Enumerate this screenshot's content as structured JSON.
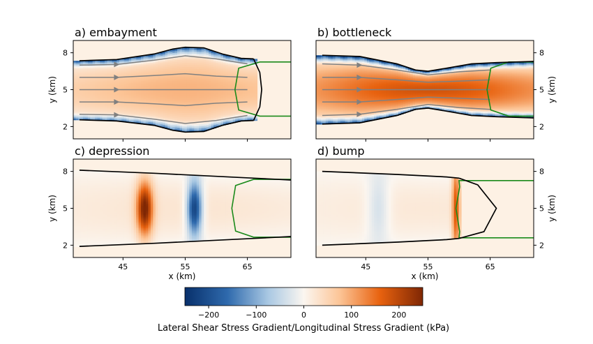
{
  "chart_data": [
    {
      "type": "heatmap",
      "title": "a) embayment",
      "xlabel": "",
      "ylabel": "y (km)",
      "xlim": [
        37,
        72
      ],
      "ylim": [
        1,
        9
      ],
      "xticks": [
        45,
        55,
        65
      ],
      "yticks": [
        2,
        5,
        8
      ],
      "ytick_side": "left",
      "show_xticklabels": false,
      "geometry": "embayment",
      "margin": {
        "upper": [
          [
            38,
            7.35
          ],
          [
            44,
            7.45
          ],
          [
            50,
            7.9
          ],
          [
            53,
            8.3
          ],
          [
            55,
            8.45
          ],
          [
            58,
            8.4
          ],
          [
            61,
            7.9
          ],
          [
            64,
            7.55
          ],
          [
            66,
            7.5
          ]
        ],
        "lower": [
          [
            38,
            2.55
          ],
          [
            44,
            2.45
          ],
          [
            50,
            2.1
          ],
          [
            53,
            1.7
          ],
          [
            55,
            1.55
          ],
          [
            58,
            1.6
          ],
          [
            61,
            2.1
          ],
          [
            64,
            2.45
          ],
          [
            66,
            2.5
          ]
        ]
      },
      "calving_front": [
        [
          66,
          7.5
        ],
        [
          67,
          6.4
        ],
        [
          67.3,
          5
        ],
        [
          67,
          3.6
        ],
        [
          66,
          2.5
        ]
      ],
      "streamlines": [
        [
          [
            38,
            7.0
          ],
          [
            44,
            7.05
          ],
          [
            50,
            7.4
          ],
          [
            55,
            7.75
          ],
          [
            60,
            7.5
          ],
          [
            63,
            7.25
          ],
          [
            65,
            7.1
          ]
        ],
        [
          [
            38,
            6.0
          ],
          [
            44,
            6.0
          ],
          [
            50,
            6.15
          ],
          [
            55,
            6.3
          ],
          [
            60,
            6.1
          ],
          [
            65,
            6.0
          ]
        ],
        [
          [
            38,
            5.0
          ],
          [
            44,
            5.0
          ],
          [
            50,
            5.0
          ],
          [
            55,
            5.0
          ],
          [
            60,
            5.0
          ],
          [
            65,
            5.0
          ]
        ],
        [
          [
            38,
            4.0
          ],
          [
            44,
            4.0
          ],
          [
            50,
            3.85
          ],
          [
            55,
            3.7
          ],
          [
            60,
            3.9
          ],
          [
            65,
            4.0
          ]
        ],
        [
          [
            38,
            3.0
          ],
          [
            44,
            2.95
          ],
          [
            50,
            2.6
          ],
          [
            55,
            2.25
          ],
          [
            60,
            2.5
          ],
          [
            63,
            2.75
          ],
          [
            65,
            2.9
          ]
        ]
      ],
      "ice_front_contour": {
        "upper": [
          [
            72,
            7.25
          ],
          [
            67,
            7.25
          ]
        ],
        "lower": [
          [
            72,
            2.85
          ],
          [
            67,
            2.85
          ]
        ],
        "bulge_x": 63
      },
      "field_peak_kpa": 90,
      "shear_peak_kpa": -200
    },
    {
      "type": "heatmap",
      "title": "b) bottleneck",
      "xlabel": "",
      "ylabel": "y (km)",
      "xlim": [
        37,
        72
      ],
      "ylim": [
        1,
        9
      ],
      "xticks": [
        45,
        55,
        65
      ],
      "yticks": [
        2,
        5,
        8
      ],
      "ytick_side": "right",
      "show_xticklabels": false,
      "geometry": "bottleneck",
      "margin": {
        "upper": [
          [
            38,
            7.8
          ],
          [
            44,
            7.7
          ],
          [
            50,
            7.1
          ],
          [
            53,
            6.6
          ],
          [
            55,
            6.5
          ],
          [
            58,
            6.75
          ],
          [
            62,
            7.1
          ],
          [
            66,
            7.2
          ],
          [
            72,
            7.3
          ]
        ],
        "lower": [
          [
            38,
            2.2
          ],
          [
            44,
            2.3
          ],
          [
            50,
            2.9
          ],
          [
            53,
            3.4
          ],
          [
            55,
            3.5
          ],
          [
            58,
            3.25
          ],
          [
            62,
            2.9
          ],
          [
            66,
            2.8
          ],
          [
            72,
            2.7
          ]
        ]
      },
      "calving_front": [],
      "streamlines": [
        [
          [
            38,
            7.1
          ],
          [
            44,
            7.0
          ],
          [
            50,
            6.6
          ],
          [
            55,
            6.2
          ],
          [
            60,
            6.45
          ],
          [
            65,
            6.6
          ]
        ],
        [
          [
            38,
            6.0
          ],
          [
            44,
            6.0
          ],
          [
            50,
            5.8
          ],
          [
            55,
            5.6
          ],
          [
            60,
            5.7
          ],
          [
            65,
            5.8
          ]
        ],
        [
          [
            38,
            5.0
          ],
          [
            44,
            5.0
          ],
          [
            50,
            5.0
          ],
          [
            55,
            5.0
          ],
          [
            60,
            5.0
          ],
          [
            65,
            5.0
          ]
        ],
        [
          [
            38,
            4.0
          ],
          [
            44,
            4.0
          ],
          [
            50,
            4.2
          ],
          [
            55,
            4.4
          ],
          [
            60,
            4.3
          ],
          [
            65,
            4.2
          ]
        ],
        [
          [
            38,
            2.9
          ],
          [
            44,
            3.0
          ],
          [
            50,
            3.4
          ],
          [
            55,
            3.8
          ],
          [
            60,
            3.55
          ],
          [
            65,
            3.4
          ]
        ]
      ],
      "ice_front_contour": {
        "upper": [
          [
            72,
            7.25
          ],
          [
            68,
            7.25
          ]
        ],
        "lower": [
          [
            72,
            2.85
          ],
          [
            68,
            2.85
          ]
        ],
        "bulge_x": 64.5
      },
      "field_peak_kpa": 180,
      "shear_peak_kpa": -240
    },
    {
      "type": "heatmap",
      "title": "c) depression",
      "xlabel": "x (km)",
      "ylabel": "y (km)",
      "xlim": [
        37,
        72
      ],
      "ylim": [
        1,
        9
      ],
      "xticks": [
        45,
        55,
        65
      ],
      "yticks": [
        2,
        5,
        8
      ],
      "ytick_side": "left",
      "show_xticklabels": true,
      "geometry": "depression",
      "margin": {
        "upper": [
          [
            38,
            8.1
          ],
          [
            50,
            7.85
          ],
          [
            60,
            7.6
          ],
          [
            66,
            7.45
          ],
          [
            72,
            7.3
          ]
        ],
        "lower": [
          [
            38,
            1.9
          ],
          [
            50,
            2.15
          ],
          [
            60,
            2.4
          ],
          [
            66,
            2.55
          ],
          [
            72,
            2.7
          ]
        ]
      },
      "calving_front": [],
      "streamlines": [],
      "ice_front_contour": {
        "upper": [
          [
            72,
            7.35
          ],
          [
            66,
            7.35
          ]
        ],
        "lower": [
          [
            72,
            2.65
          ],
          [
            66,
            2.65
          ]
        ],
        "bulge_x": 62.5
      },
      "anomalies": [
        {
          "x": 48.5,
          "width": 1.3,
          "y": 5,
          "height": 2.2,
          "kpa": 240
        },
        {
          "x": 56.5,
          "width": 1.2,
          "y": 5,
          "height": 2.2,
          "kpa": -240
        }
      ],
      "field_peak_kpa": 25,
      "shear_peak_kpa": 0
    },
    {
      "type": "heatmap",
      "title": "d) bump",
      "xlabel": "x (km)",
      "ylabel": "y (km)",
      "xlim": [
        37,
        72
      ],
      "ylim": [
        1,
        9
      ],
      "xticks": [
        45,
        55,
        65
      ],
      "yticks": [
        2,
        5,
        8
      ],
      "ytick_side": "right",
      "show_xticklabels": true,
      "geometry": "bump",
      "margin": {
        "upper": [
          [
            38,
            8.0
          ],
          [
            50,
            7.75
          ],
          [
            58,
            7.55
          ],
          [
            60,
            7.45
          ]
        ],
        "lower": [
          [
            38,
            2.0
          ],
          [
            50,
            2.25
          ],
          [
            58,
            2.45
          ],
          [
            60,
            2.55
          ]
        ]
      },
      "calving_front": [
        [
          60,
          7.45
        ],
        [
          63,
          6.9
        ],
        [
          66,
          5.0
        ],
        [
          64,
          3.1
        ],
        [
          60,
          2.55
        ]
      ],
      "streamlines": [],
      "ice_front_contour": {
        "upper": [
          [
            72,
            7.25
          ],
          [
            60,
            7.25
          ]
        ],
        "lower": [
          [
            72,
            2.6
          ],
          [
            60,
            2.6
          ]
        ],
        "bulge_x": 59.5
      },
      "anomalies": [
        {
          "x": 47,
          "width": 1.8,
          "y": 5,
          "height": 3.0,
          "kpa": -50
        },
        {
          "x": 59.5,
          "width": 0.6,
          "y": 5,
          "height": 4.4,
          "kpa": 160
        }
      ],
      "field_peak_kpa": 20,
      "shear_peak_kpa": 0
    }
  ],
  "colorbar": {
    "label": "Lateral Shear Stress Gradient/Longitudinal Stress Gradient (kPa)",
    "range": [
      -250,
      250
    ],
    "ticks": [
      -200,
      -100,
      0,
      100,
      200
    ],
    "tick_labels": [
      "−200",
      "−100",
      "0",
      "100",
      "200"
    ],
    "colormap": "PuOr-like diverging",
    "negative_color": "#08306b",
    "positive_color": "#7f2704"
  },
  "colors": {
    "margin_contour": "#000000",
    "front_contour": "#1a8a1a",
    "streamline": "#808080",
    "outside_ice": "#fdf1e4"
  }
}
